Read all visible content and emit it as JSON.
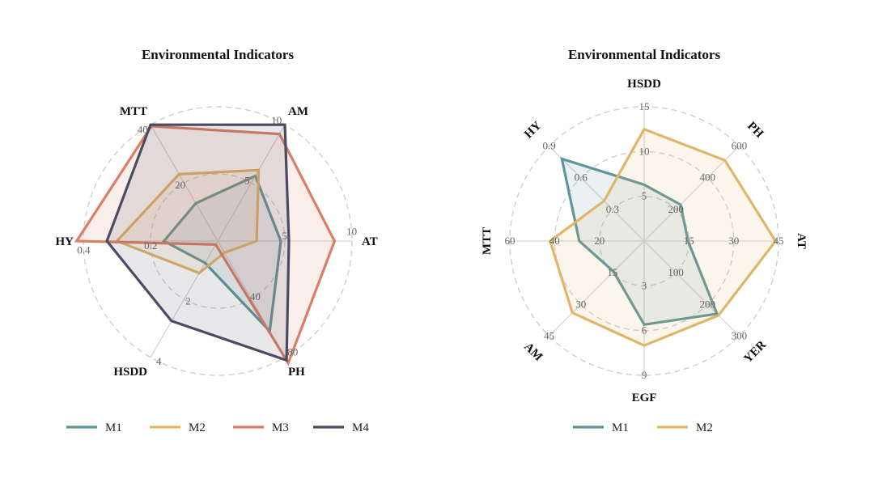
{
  "chart_data": [
    {
      "type": "radar",
      "title": "Environmental Indicators",
      "axes": [
        {
          "label": "AT",
          "max": 10,
          "ticks": [
            "5",
            "10"
          ]
        },
        {
          "label": "PH",
          "max": 80,
          "ticks": [
            "40",
            "80"
          ]
        },
        {
          "label": "HSDD",
          "max": 4,
          "ticks": [
            "2",
            "4"
          ]
        },
        {
          "label": "HY",
          "max": 0.4,
          "ticks": [
            "0.2",
            "0.4"
          ]
        },
        {
          "label": "MTT",
          "max": 40,
          "ticks": [
            "20",
            "40"
          ]
        },
        {
          "label": "AM",
          "max": 10,
          "ticks": [
            "5",
            "10"
          ]
        }
      ],
      "series": [
        {
          "name": "M1",
          "color": "#5f9598",
          "values": [
            4.7,
            62,
            0.75,
            0.16,
            13,
            5.6
          ]
        },
        {
          "name": "M2",
          "color": "#e0b66a",
          "values": [
            2.9,
            8,
            1.1,
            0.3,
            23,
            6.1
          ]
        },
        {
          "name": "M3",
          "color": "#d97f63",
          "values": [
            8.7,
            84,
            0.12,
            0.42,
            39.5,
            9.2
          ]
        },
        {
          "name": "M4",
          "color": "#4b4b63",
          "values": [
            5.3,
            82,
            2.75,
            0.33,
            40,
            10
          ]
        }
      ]
    },
    {
      "type": "radar",
      "title": "Environmental Indicators",
      "axes": [
        {
          "label": "HSDD",
          "max": 15,
          "ticks": [
            "5",
            "10",
            "15"
          ]
        },
        {
          "label": "PH",
          "max": 600,
          "ticks": [
            "200",
            "400",
            "600"
          ]
        },
        {
          "label": "AT",
          "max": 45,
          "ticks": [
            "15",
            "30",
            "45"
          ]
        },
        {
          "label": "YER",
          "max": 300,
          "ticks": [
            "100",
            "200",
            "300"
          ]
        },
        {
          "label": "EGF",
          "max": 9,
          "ticks": [
            "3",
            "6",
            "9"
          ]
        },
        {
          "label": "AM",
          "max": 45,
          "ticks": [
            "15",
            "30",
            "45"
          ]
        },
        {
          "label": "MTT",
          "max": 60,
          "ticks": [
            "20",
            "40",
            "60"
          ]
        },
        {
          "label": "HY",
          "max": 0.9,
          "ticks": [
            "0.3",
            "0.6",
            "0.9"
          ]
        }
      ],
      "series": [
        {
          "name": "M1",
          "color": "#5f9598",
          "values": [
            6.3,
            230,
            14.7,
            230,
            5.6,
            14.5,
            29,
            0.78
          ]
        },
        {
          "name": "M2",
          "color": "#e0b66a",
          "values": [
            12.5,
            510,
            44,
            235,
            7,
            34,
            42,
            0.38
          ]
        }
      ]
    }
  ]
}
